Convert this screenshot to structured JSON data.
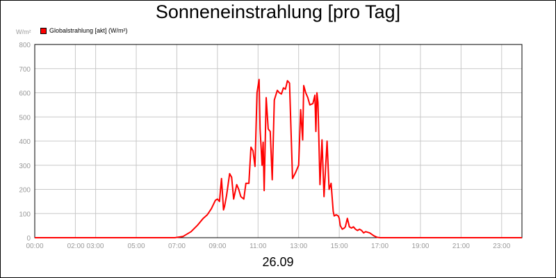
{
  "chart_data": {
    "type": "line",
    "title": "Sonneneinstrahlung [pro Tag]",
    "ylabel": "W/m²",
    "xlabel": "26.09",
    "ylim": [
      0,
      800
    ],
    "xlim": [
      0,
      24
    ],
    "grid": true,
    "legend_position": "top-left",
    "yticks": [
      "0",
      "100",
      "200",
      "300",
      "400",
      "500",
      "600",
      "700",
      "800"
    ],
    "xticks": [
      {
        "x": 0,
        "label": "00:00"
      },
      {
        "x": 2.5,
        "label": "02:00 03:00"
      },
      {
        "x": 5,
        "label": "05:00"
      },
      {
        "x": 7,
        "label": "07:00"
      },
      {
        "x": 9,
        "label": "09:00"
      },
      {
        "x": 11,
        "label": "11:00"
      },
      {
        "x": 13,
        "label": "13:00"
      },
      {
        "x": 15,
        "label": "15:00"
      },
      {
        "x": 17,
        "label": "17:00"
      },
      {
        "x": 19,
        "label": "19:00"
      },
      {
        "x": 21,
        "label": "21:00"
      },
      {
        "x": 23,
        "label": "23:00"
      }
    ],
    "xgrid": [
      0,
      2,
      3,
      5,
      7,
      9,
      11,
      13,
      15,
      17,
      19,
      21,
      23
    ],
    "series": [
      {
        "name": "Globalstrahlung [akt] (W/m²)",
        "color": "#ff0000",
        "x": [
          0,
          6.9,
          7.3,
          7.7,
          8.0,
          8.3,
          8.5,
          8.7,
          8.9,
          9.0,
          9.1,
          9.2,
          9.3,
          9.35,
          9.45,
          9.6,
          9.7,
          9.8,
          9.95,
          10.05,
          10.15,
          10.3,
          10.4,
          10.55,
          10.65,
          10.75,
          10.85,
          10.95,
          11.05,
          11.1,
          11.2,
          11.25,
          11.3,
          11.4,
          11.5,
          11.6,
          11.7,
          11.8,
          11.95,
          12.05,
          12.15,
          12.25,
          12.35,
          12.45,
          12.55,
          12.7,
          12.85,
          13.0,
          13.1,
          13.2,
          13.25,
          13.35,
          13.45,
          13.55,
          13.7,
          13.8,
          13.85,
          13.9,
          13.95,
          14.05,
          14.15,
          14.25,
          14.4,
          14.5,
          14.6,
          14.7,
          14.75,
          14.85,
          14.95,
          15.0,
          15.05,
          15.15,
          15.25,
          15.3,
          15.4,
          15.5,
          15.6,
          15.7,
          15.8,
          15.9,
          16.0,
          16.1,
          16.2,
          16.3,
          16.5,
          16.7,
          16.85,
          17.0,
          17.1,
          17.3,
          17.5,
          17.6,
          17.7,
          17.8,
          18.0,
          18.1,
          18.3,
          18.5,
          18.7,
          19.0,
          19.5,
          20,
          24
        ],
        "values": [
          0,
          0,
          5,
          25,
          50,
          80,
          95,
          120,
          155,
          160,
          150,
          245,
          115,
          130,
          175,
          265,
          250,
          160,
          220,
          200,
          170,
          160,
          225,
          225,
          375,
          360,
          295,
          600,
          655,
          450,
          300,
          395,
          195,
          580,
          450,
          440,
          240,
          570,
          610,
          600,
          595,
          620,
          615,
          650,
          640,
          245,
          270,
          300,
          530,
          405,
          630,
          600,
          580,
          550,
          555,
          590,
          440,
          600,
          560,
          220,
          405,
          170,
          400,
          200,
          225,
          110,
          90,
          95,
          90,
          80,
          50,
          35,
          40,
          45,
          80,
          45,
          40,
          45,
          35,
          30,
          35,
          30,
          20,
          25,
          20,
          8,
          2,
          0,
          0,
          0,
          0,
          0,
          0,
          0,
          0,
          0,
          0,
          0,
          0,
          0,
          0,
          0,
          0
        ]
      }
    ]
  }
}
